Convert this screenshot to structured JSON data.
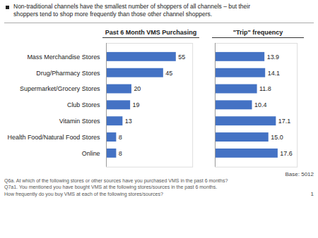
{
  "chart_data": [
    {
      "type": "bar",
      "orientation": "horizontal",
      "title": "Past 6 Month VMS Purchasing",
      "categories": [
        "Mass Merchandise Stores",
        "Drug/Pharmacy Stores",
        "Supermarket/Grocery Stores",
        "Club Stores",
        "Vitamin Stores",
        "Health Food/Natural Food Stores",
        "Online"
      ],
      "values": [
        55,
        45,
        20,
        19,
        13,
        8,
        8
      ],
      "color": "#4472C4",
      "xlim": [
        0,
        68
      ],
      "data_labels": true,
      "tick_labels": "y",
      "annotations": [
        "Non-traditional channels have the smallest number of shoppers of all channels – but their",
        "shoppers tend to shop more frequently than those other channel shoppers.",
        "Base: 5012",
        "Q6a.  At which of the following stores or other sources have you purchased VMS in the past 6 months?",
        "Q7a1. You mentioned you have bought VMS at the following stores/sources in the past 6 months.",
        "How frequently do you buy VMS at each of the following stores/sources?",
        "1"
      ]
    },
    {
      "type": "bar",
      "orientation": "horizontal",
      "title": "\"Trip\" frequency",
      "categories": [
        "Mass Merchandise Stores",
        "Drug/Pharmacy Stores",
        "Supermarket/Grocery Stores",
        "Club Stores",
        "Vitamin Stores",
        "Health Food/Natural Food Stores",
        "Online"
      ],
      "values": [
        13.9,
        14.1,
        11.8,
        10.4,
        17.1,
        15.0,
        17.6
      ],
      "value_labels": [
        "13.9",
        "14.1",
        "11.8",
        "10.4",
        "17.1",
        "15.0",
        "17.6"
      ],
      "color": "#4472C4",
      "xlim": [
        0,
        23
      ],
      "data_labels": true,
      "tick_labels": false
    }
  ]
}
